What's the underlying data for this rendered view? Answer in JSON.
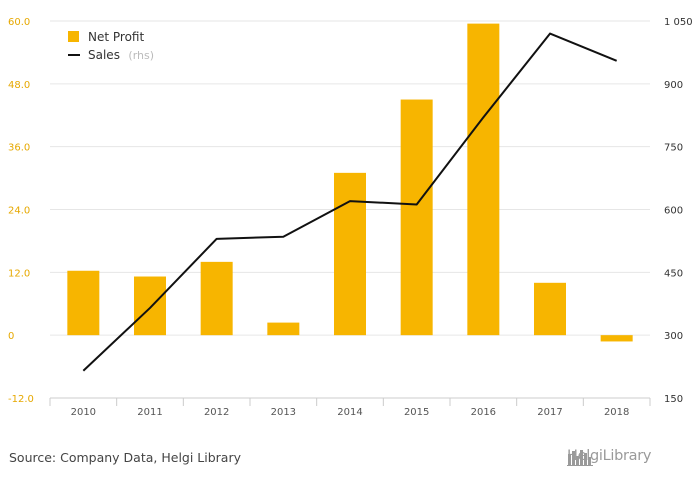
{
  "chart_data": {
    "type": "bar",
    "categories": [
      "2010",
      "2011",
      "2012",
      "2013",
      "2014",
      "2015",
      "2016",
      "2017",
      "2018"
    ],
    "series": [
      {
        "name": "Net Profit",
        "type": "bar",
        "axis": "left",
        "color": "#f7b500",
        "values": [
          12.3,
          11.2,
          14.0,
          2.4,
          31.0,
          45.0,
          59.5,
          10.0,
          -1.2
        ]
      },
      {
        "name": "Sales",
        "type": "line",
        "axis": "right",
        "color": "#111111",
        "values": [
          215,
          365,
          530,
          535,
          620,
          612,
          820,
          1020,
          955
        ]
      }
    ],
    "y_left": {
      "ticks": [
        "60.0",
        "48.0",
        "36.0",
        "24.0",
        "12.0",
        "0",
        "-12.0"
      ],
      "ylim": [
        -12,
        60
      ]
    },
    "y_right": {
      "ticks": [
        "1 050",
        "900",
        "750",
        "600",
        "450",
        "300",
        "150"
      ],
      "ylim": [
        150,
        1050
      ]
    },
    "legend": {
      "position": "top-left",
      "items": [
        "Net Profit",
        "Sales"
      ],
      "sales_suffix": "(rhs)"
    },
    "grid": true
  },
  "footer": {
    "source": "Source: Company Data, Helgi Library",
    "logo_text": "HelgiLibrary"
  }
}
